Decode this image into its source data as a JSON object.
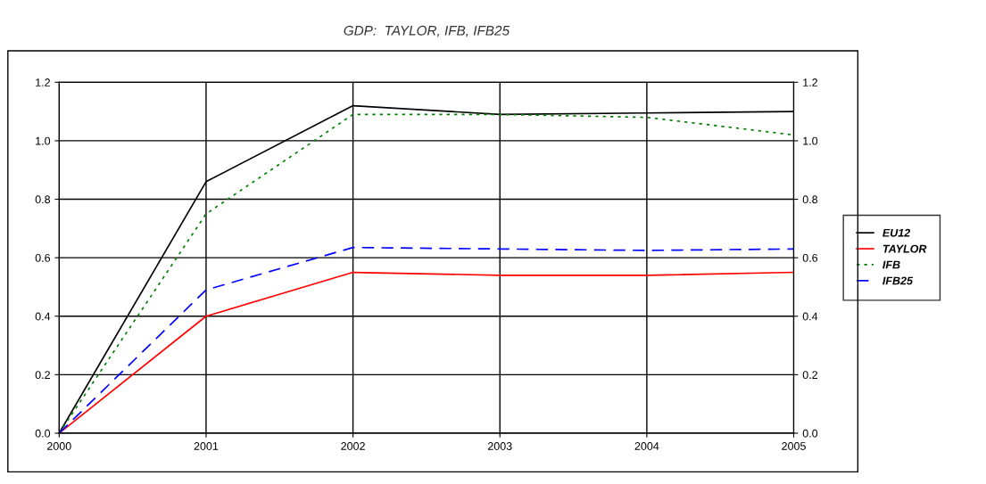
{
  "chart_data": {
    "type": "line",
    "title": "GDP:  TAYLOR, IFB, IFB25",
    "x": [
      2000,
      2001,
      2002,
      2003,
      2004,
      2005
    ],
    "series": [
      {
        "name": "EU12",
        "color": "#000000",
        "line_style": "solid",
        "values": [
          0,
          0.86,
          1.12,
          1.09,
          1.095,
          1.1
        ]
      },
      {
        "name": "TAYLOR",
        "color": "#ff0000",
        "line_style": "solid",
        "values": [
          0,
          0.4,
          0.55,
          0.54,
          0.54,
          0.55
        ]
      },
      {
        "name": "IFB",
        "color": "#008000",
        "line_style": "dotted",
        "values": [
          0,
          0.75,
          1.09,
          1.09,
          1.08,
          1.02
        ]
      },
      {
        "name": "IFB25",
        "color": "#0000ff",
        "line_style": "dashed",
        "values": [
          0,
          0.49,
          0.635,
          0.63,
          0.625,
          0.63
        ]
      }
    ],
    "xlim": [
      2000,
      2005
    ],
    "xticks": [
      2000,
      2001,
      2002,
      2003,
      2004,
      2005
    ],
    "ylim": [
      0,
      1.2
    ],
    "yticks": [
      {
        "value": 0,
        "label": "0.0"
      },
      {
        "value": 0.2,
        "label": "0.2"
      },
      {
        "value": 0.4,
        "label": "0.4"
      },
      {
        "value": 0.6,
        "label": "0.6"
      },
      {
        "value": 0.8,
        "label": "0.8"
      },
      {
        "value": 1.0,
        "label": "1.0"
      },
      {
        "value": 1.2,
        "label": "1.2"
      }
    ],
    "y2lim": [
      0,
      1.2
    ],
    "y2ticks": [
      {
        "value": 0,
        "label": "0.0"
      },
      {
        "value": 0.2,
        "label": "0.2"
      },
      {
        "value": 0.4,
        "label": "0.4"
      },
      {
        "value": 0.6,
        "label": "0.6"
      },
      {
        "value": 0.8,
        "label": "0.8"
      },
      {
        "value": 1.0,
        "label": "1.0"
      },
      {
        "value": 1.2,
        "label": "1.2"
      }
    ],
    "grid": true,
    "legend": "right",
    "marker": "none"
  }
}
